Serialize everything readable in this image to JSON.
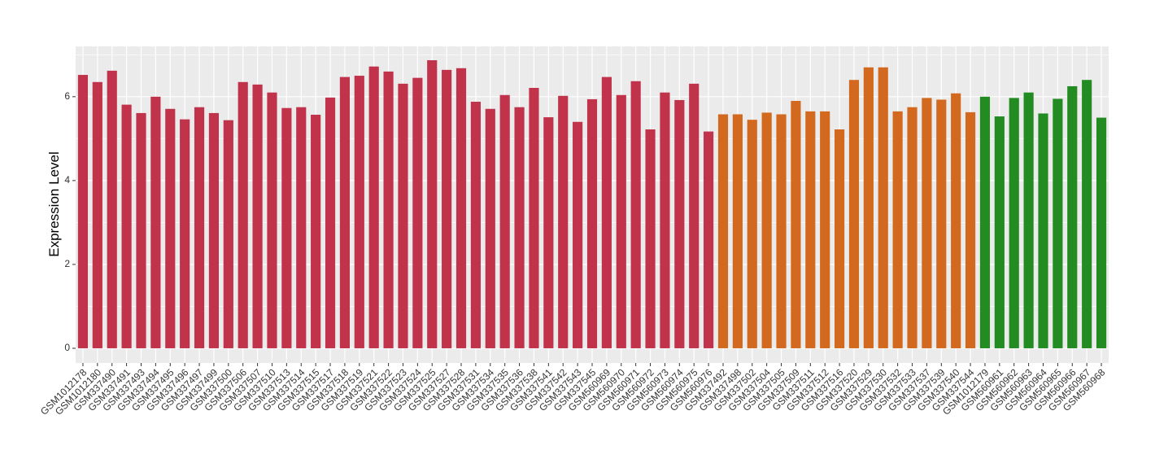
{
  "chart_data": {
    "type": "bar",
    "ylabel": "Expression Level",
    "categories": [
      "GSM1012178",
      "GSM1012180",
      "GSM337490",
      "GSM337491",
      "GSM337493",
      "GSM337494",
      "GSM337495",
      "GSM337496",
      "GSM337497",
      "GSM337499",
      "GSM337500",
      "GSM337506",
      "GSM337507",
      "GSM337510",
      "GSM337513",
      "GSM337514",
      "GSM337515",
      "GSM337517",
      "GSM337518",
      "GSM337519",
      "GSM337521",
      "GSM337522",
      "GSM337523",
      "GSM337524",
      "GSM337525",
      "GSM337527",
      "GSM337528",
      "GSM337531",
      "GSM337534",
      "GSM337535",
      "GSM337536",
      "GSM337538",
      "GSM337541",
      "GSM337542",
      "GSM337543",
      "GSM337545",
      "GSM560969",
      "GSM560970",
      "GSM560971",
      "GSM560972",
      "GSM560973",
      "GSM560974",
      "GSM560975",
      "GSM560976",
      "GSM337492",
      "GSM337498",
      "GSM337502",
      "GSM337504",
      "GSM337505",
      "GSM337509",
      "GSM337511",
      "GSM337512",
      "GSM337516",
      "GSM337520",
      "GSM337529",
      "GSM337530",
      "GSM337532",
      "GSM337533",
      "GSM337537",
      "GSM337539",
      "GSM337540",
      "GSM337544",
      "GSM1012179",
      "GSM560961",
      "GSM560962",
      "GSM560963",
      "GSM560964",
      "GSM560965",
      "GSM560966",
      "GSM560967",
      "GSM560968"
    ],
    "values": [
      6.52,
      6.35,
      6.62,
      5.81,
      5.61,
      6.0,
      5.71,
      5.46,
      5.75,
      5.61,
      5.44,
      6.35,
      6.29,
      6.1,
      5.73,
      5.75,
      5.57,
      5.98,
      6.47,
      6.5,
      6.72,
      6.6,
      6.31,
      6.45,
      6.87,
      6.64,
      6.68,
      5.88,
      5.71,
      6.04,
      5.75,
      6.21,
      5.51,
      6.02,
      5.4,
      5.94,
      6.47,
      6.04,
      6.37,
      5.22,
      6.1,
      5.92,
      6.31,
      5.17,
      5.58,
      5.58,
      5.45,
      5.62,
      5.58,
      5.9,
      5.65,
      5.65,
      5.22,
      6.4,
      6.7,
      6.7,
      5.65,
      5.75,
      5.97,
      5.93,
      6.08,
      5.63,
      6.0,
      5.53,
      5.97,
      6.1,
      5.6,
      5.95,
      6.25,
      6.4,
      5.5
    ],
    "colors": [
      "#c0334a",
      "#c0334a",
      "#c0334a",
      "#c0334a",
      "#c0334a",
      "#c0334a",
      "#c0334a",
      "#c0334a",
      "#c0334a",
      "#c0334a",
      "#c0334a",
      "#c0334a",
      "#c0334a",
      "#c0334a",
      "#c0334a",
      "#c0334a",
      "#c0334a",
      "#c0334a",
      "#c0334a",
      "#c0334a",
      "#c0334a",
      "#c0334a",
      "#c0334a",
      "#c0334a",
      "#c0334a",
      "#c0334a",
      "#c0334a",
      "#c0334a",
      "#c0334a",
      "#c0334a",
      "#c0334a",
      "#c0334a",
      "#c0334a",
      "#c0334a",
      "#c0334a",
      "#c0334a",
      "#c0334a",
      "#c0334a",
      "#c0334a",
      "#c0334a",
      "#c0334a",
      "#c0334a",
      "#c0334a",
      "#c0334a",
      "#d2691e",
      "#d2691e",
      "#d2691e",
      "#d2691e",
      "#d2691e",
      "#d2691e",
      "#d2691e",
      "#d2691e",
      "#d2691e",
      "#d2691e",
      "#d2691e",
      "#d2691e",
      "#d2691e",
      "#d2691e",
      "#d2691e",
      "#d2691e",
      "#d2691e",
      "#d2691e",
      "#228b22",
      "#228b22",
      "#228b22",
      "#228b22",
      "#228b22",
      "#228b22",
      "#228b22",
      "#228b22",
      "#228b22"
    ],
    "ylim": [
      -0.35,
      7.2
    ],
    "yticks": [
      0,
      2,
      4,
      6
    ],
    "grid": true
  }
}
